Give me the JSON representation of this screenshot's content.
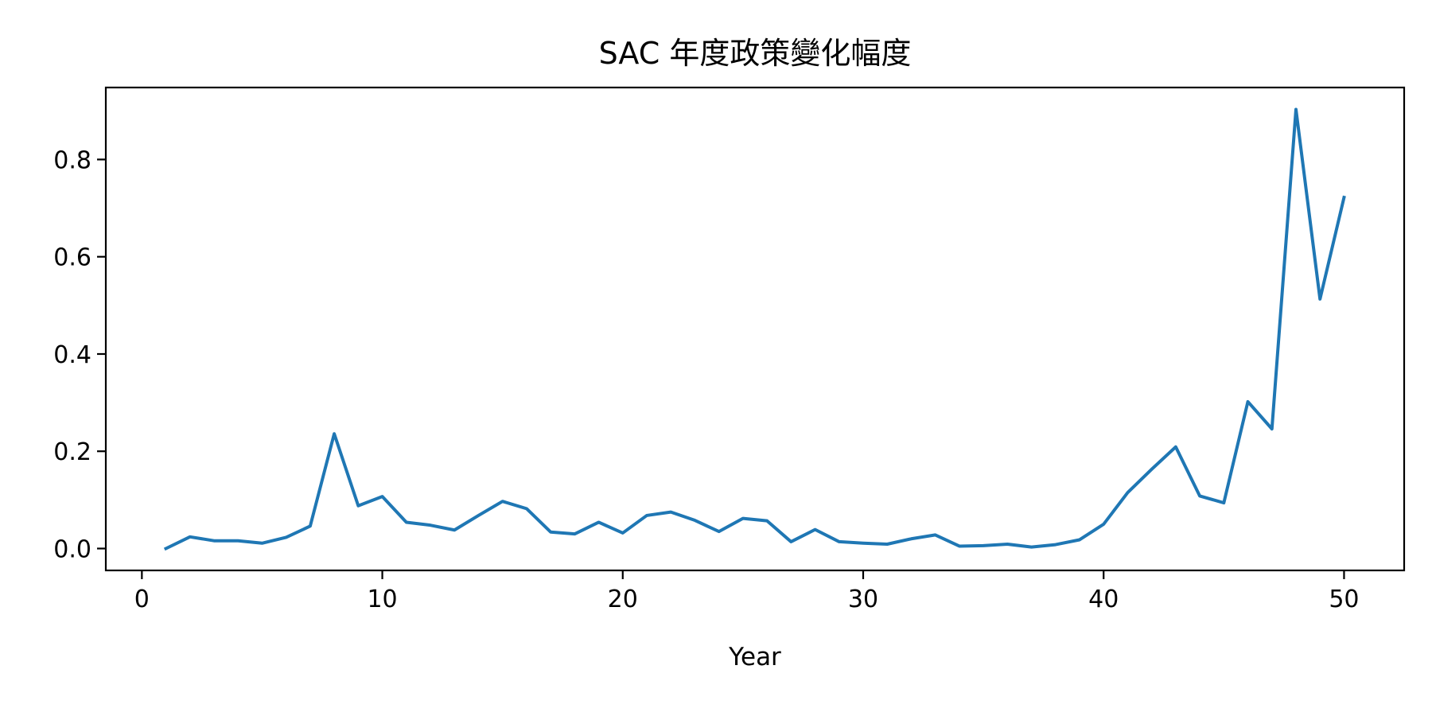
{
  "chart_data": {
    "type": "line",
    "title": "SAC 年度政策變化幅度",
    "xlabel": "Year",
    "ylabel": "",
    "xlim": [
      -1.5,
      52.5
    ],
    "ylim": [
      -0.045,
      0.948
    ],
    "xticks": [
      0,
      10,
      20,
      30,
      40,
      50
    ],
    "yticks": [
      0.0,
      0.2,
      0.4,
      0.6,
      0.8
    ],
    "xtick_labels": [
      "0",
      "10",
      "20",
      "30",
      "40",
      "50"
    ],
    "ytick_labels": [
      "0.0",
      "0.2",
      "0.4",
      "0.6",
      "0.8"
    ],
    "grid": false,
    "series": [
      {
        "color": "#1f77b4",
        "x": [
          1,
          2,
          3,
          4,
          5,
          6,
          7,
          8,
          9,
          10,
          11,
          12,
          13,
          14,
          15,
          16,
          17,
          18,
          19,
          20,
          21,
          22,
          23,
          24,
          25,
          26,
          27,
          28,
          29,
          30,
          31,
          32,
          33,
          34,
          35,
          36,
          37,
          38,
          39,
          40,
          41,
          42,
          43,
          44,
          45,
          46,
          47,
          48,
          49,
          50
        ],
        "values": [
          0.0,
          0.024,
          0.016,
          0.016,
          0.011,
          0.023,
          0.046,
          0.236,
          0.088,
          0.107,
          0.054,
          0.048,
          0.038,
          0.068,
          0.097,
          0.082,
          0.034,
          0.03,
          0.054,
          0.032,
          0.068,
          0.075,
          0.058,
          0.035,
          0.062,
          0.057,
          0.014,
          0.039,
          0.014,
          0.011,
          0.009,
          0.02,
          0.028,
          0.005,
          0.006,
          0.009,
          0.003,
          0.008,
          0.018,
          0.05,
          0.115,
          0.163,
          0.209,
          0.108,
          0.094,
          0.302,
          0.246,
          0.903,
          0.513,
          0.722
        ]
      }
    ]
  }
}
